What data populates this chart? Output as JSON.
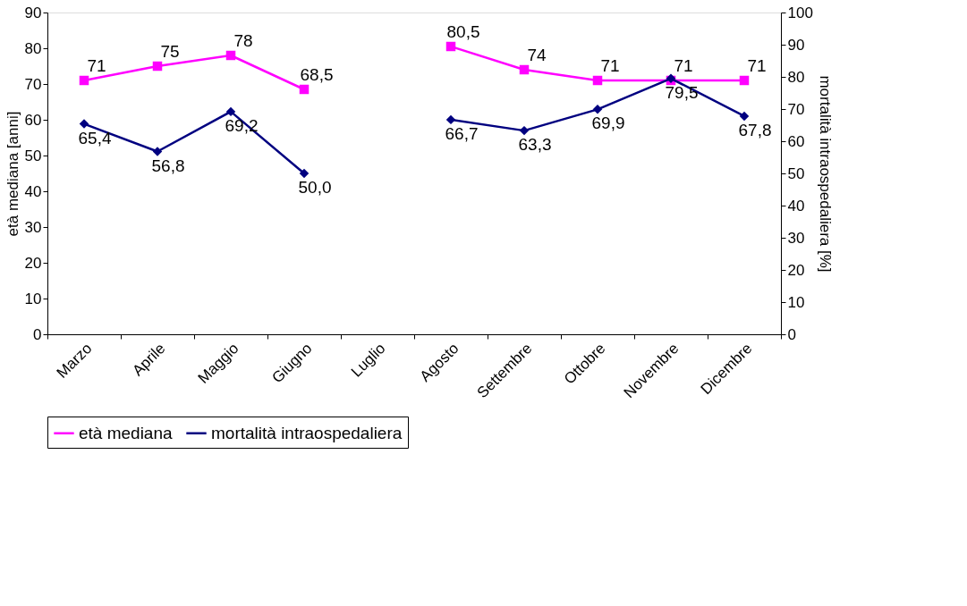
{
  "chart_data": {
    "type": "line",
    "categories": [
      "Marzo",
      "Aprile",
      "Maggio",
      "Giugno",
      "Luglio",
      "Agosto",
      "Settembre",
      "Ottobre",
      "Novembre",
      "Dicembre"
    ],
    "ylabel": "età mediana [anni]",
    "y2label": "mortalità intraospedaliera [%]",
    "ylim": [
      0,
      90
    ],
    "yticks": [
      0,
      10,
      20,
      30,
      40,
      50,
      60,
      70,
      80,
      90
    ],
    "y2lim": [
      0,
      100
    ],
    "y2ticks": [
      0,
      10,
      20,
      30,
      40,
      50,
      60,
      70,
      80,
      90,
      100
    ],
    "grid": false,
    "legend": "bottom",
    "series": [
      {
        "name": "età mediana",
        "color": "#ff00ff",
        "marker": "square",
        "values": [
          71,
          75,
          78,
          68.5,
          null,
          80.5,
          74,
          71,
          71,
          71
        ],
        "value_labels": [
          "71",
          "75",
          "78",
          "68,5",
          null,
          "80,5",
          "74",
          "71",
          "71",
          "71"
        ]
      },
      {
        "name": "mortalità intraospedaliera",
        "color": "#000080",
        "marker": "diamond",
        "axis": "y2",
        "values": [
          65.4,
          56.8,
          69.2,
          50.0,
          null,
          66.7,
          63.3,
          69.9,
          79.5,
          67.8
        ],
        "value_labels": [
          "65,4",
          "56,8",
          "69,2",
          "50,0",
          null,
          "66,7",
          "63,3",
          "69,9",
          "79,5",
          "67,8"
        ]
      }
    ]
  }
}
